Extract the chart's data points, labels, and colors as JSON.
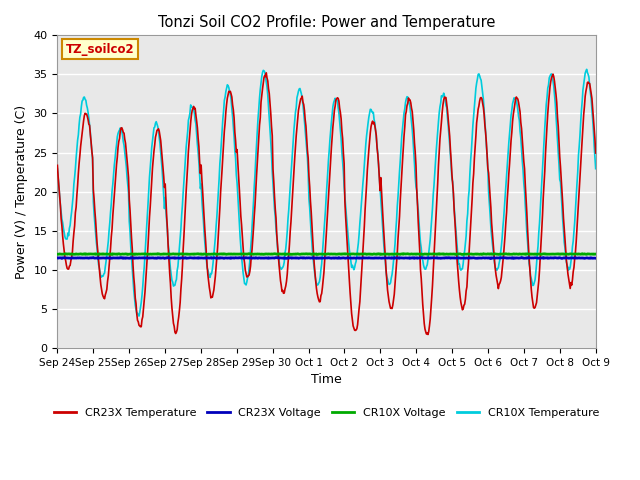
{
  "title": "Tonzi Soil CO2 Profile: Power and Temperature",
  "xlabel": "Time",
  "ylabel": "Power (V) / Temperature (C)",
  "ylim": [
    0,
    40
  ],
  "ytick_values": [
    0,
    5,
    10,
    15,
    20,
    25,
    30,
    35,
    40
  ],
  "xtick_labels": [
    "Sep 24",
    "Sep 25",
    "Sep 26",
    "Sep 27",
    "Sep 28",
    "Sep 29",
    "Sep 30",
    "Oct 1",
    "Oct 2",
    "Oct 3",
    "Oct 4",
    "Oct 5",
    "Oct 6",
    "Oct 7",
    "Oct 8",
    "Oct 9"
  ],
  "annotation_text": "TZ_soilco2",
  "annotation_color": "#cc0000",
  "annotation_bg": "#ffffcc",
  "annotation_border": "#cc8800",
  "fig_bg_color": "#ffffff",
  "plot_bg_color": "#e8e8e8",
  "cr23x_temp_color": "#cc0000",
  "cr23x_volt_color": "#0000bb",
  "cr10x_volt_color": "#00aa00",
  "cr10x_temp_color": "#00ccdd",
  "line_width": 1.2,
  "legend_labels": [
    "CR23X Temperature",
    "CR23X Voltage",
    "CR10X Voltage",
    "CR10X Temperature"
  ],
  "n_days": 15,
  "n_per_day": 48,
  "volt_cr23x": 11.5,
  "volt_cr10x": 12.0
}
